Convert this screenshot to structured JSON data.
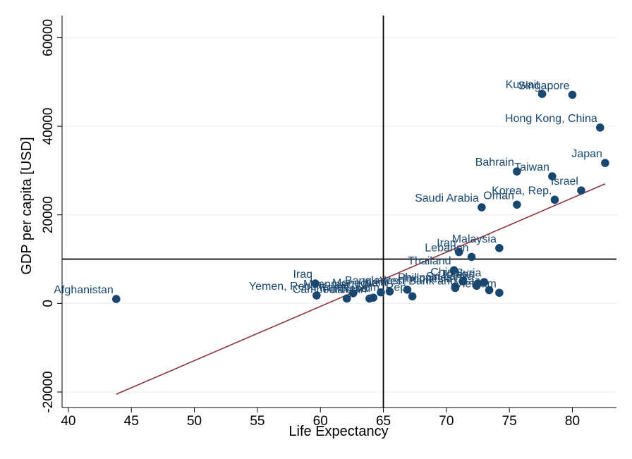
{
  "chart_data": {
    "type": "scatter",
    "xlabel": "Life Expectancy",
    "ylabel": "GDP per capita [USD]",
    "xlim": [
      39.5,
      83.5
    ],
    "ylim": [
      -23500,
      65000
    ],
    "xticks": [
      40,
      45,
      50,
      55,
      60,
      65,
      70,
      75,
      80
    ],
    "yticks": [
      -20000,
      0,
      20000,
      40000,
      60000
    ],
    "grid": "horizontal",
    "reference_lines": {
      "x": 65,
      "y": 10000
    },
    "fit_line": {
      "x": [
        43.8,
        82.6
      ],
      "y": [
        -20500,
        27000
      ]
    },
    "colors": {
      "points": "#1a476f",
      "fit": "#90353b",
      "grid": "#eaf2f3",
      "reference": "#000000"
    },
    "points": [
      {
        "label": "Afghanistan",
        "x": 43.8,
        "y": 1000
      },
      {
        "label": "Iraq",
        "x": 59.6,
        "y": 4500
      },
      {
        "label": "Yemen, Rep.",
        "x": 59.7,
        "y": 1800
      },
      {
        "label": "Cambodia",
        "x": 62.1,
        "y": 1100
      },
      {
        "label": "Myanmar",
        "x": 62.6,
        "y": 2300
      },
      {
        "label": "Pakistan",
        "x": 63.9,
        "y": 1100
      },
      {
        "label": "Nepal",
        "x": 64.2,
        "y": 1300
      },
      {
        "label": "Mongolia",
        "x": 64.8,
        "y": 2500
      },
      {
        "label": "India",
        "x": 65.5,
        "y": 2700
      },
      {
        "label": "Bangladesh",
        "x": 66.9,
        "y": 3100
      },
      {
        "label": "Korea, Dem. Rep.",
        "x": 67.3,
        "y": 1600
      },
      {
        "label": "Philippines",
        "x": 70.7,
        "y": 3800
      },
      {
        "label": "Indonesia",
        "x": 70.7,
        "y": 3500
      },
      {
        "label": "Thailand",
        "x": 70.6,
        "y": 7500
      },
      {
        "label": "China",
        "x": 71.3,
        "y": 5000
      },
      {
        "label": "Sri Lanka",
        "x": 72.4,
        "y": 4000
      },
      {
        "label": "Jordan",
        "x": 72.5,
        "y": 4500
      },
      {
        "label": "Syria",
        "x": 73.0,
        "y": 4800
      },
      {
        "label": "West Bank and Gaza",
        "x": 73.4,
        "y": 3000
      },
      {
        "label": "Vietnam",
        "x": 74.2,
        "y": 2400
      },
      {
        "label": "Iran",
        "x": 71.0,
        "y": 11600
      },
      {
        "label": "Lebanon",
        "x": 72.0,
        "y": 10500
      },
      {
        "label": "Malaysia",
        "x": 74.2,
        "y": 12500
      },
      {
        "label": "Saudi Arabia",
        "x": 72.8,
        "y": 21700
      },
      {
        "label": "Oman",
        "x": 75.6,
        "y": 22300
      },
      {
        "label": "Korea, Rep.",
        "x": 78.6,
        "y": 23400
      },
      {
        "label": "Israel",
        "x": 80.7,
        "y": 25500
      },
      {
        "label": "Bahrain",
        "x": 75.6,
        "y": 29800
      },
      {
        "label": "Taiwan",
        "x": 78.4,
        "y": 28700
      },
      {
        "label": "Japan",
        "x": 82.6,
        "y": 31700
      },
      {
        "label": "Hong Kong, China",
        "x": 82.2,
        "y": 39700
      },
      {
        "label": "Kuwait",
        "x": 77.6,
        "y": 47300
      },
      {
        "label": "Singapore",
        "x": 80.0,
        "y": 47100
      }
    ]
  }
}
